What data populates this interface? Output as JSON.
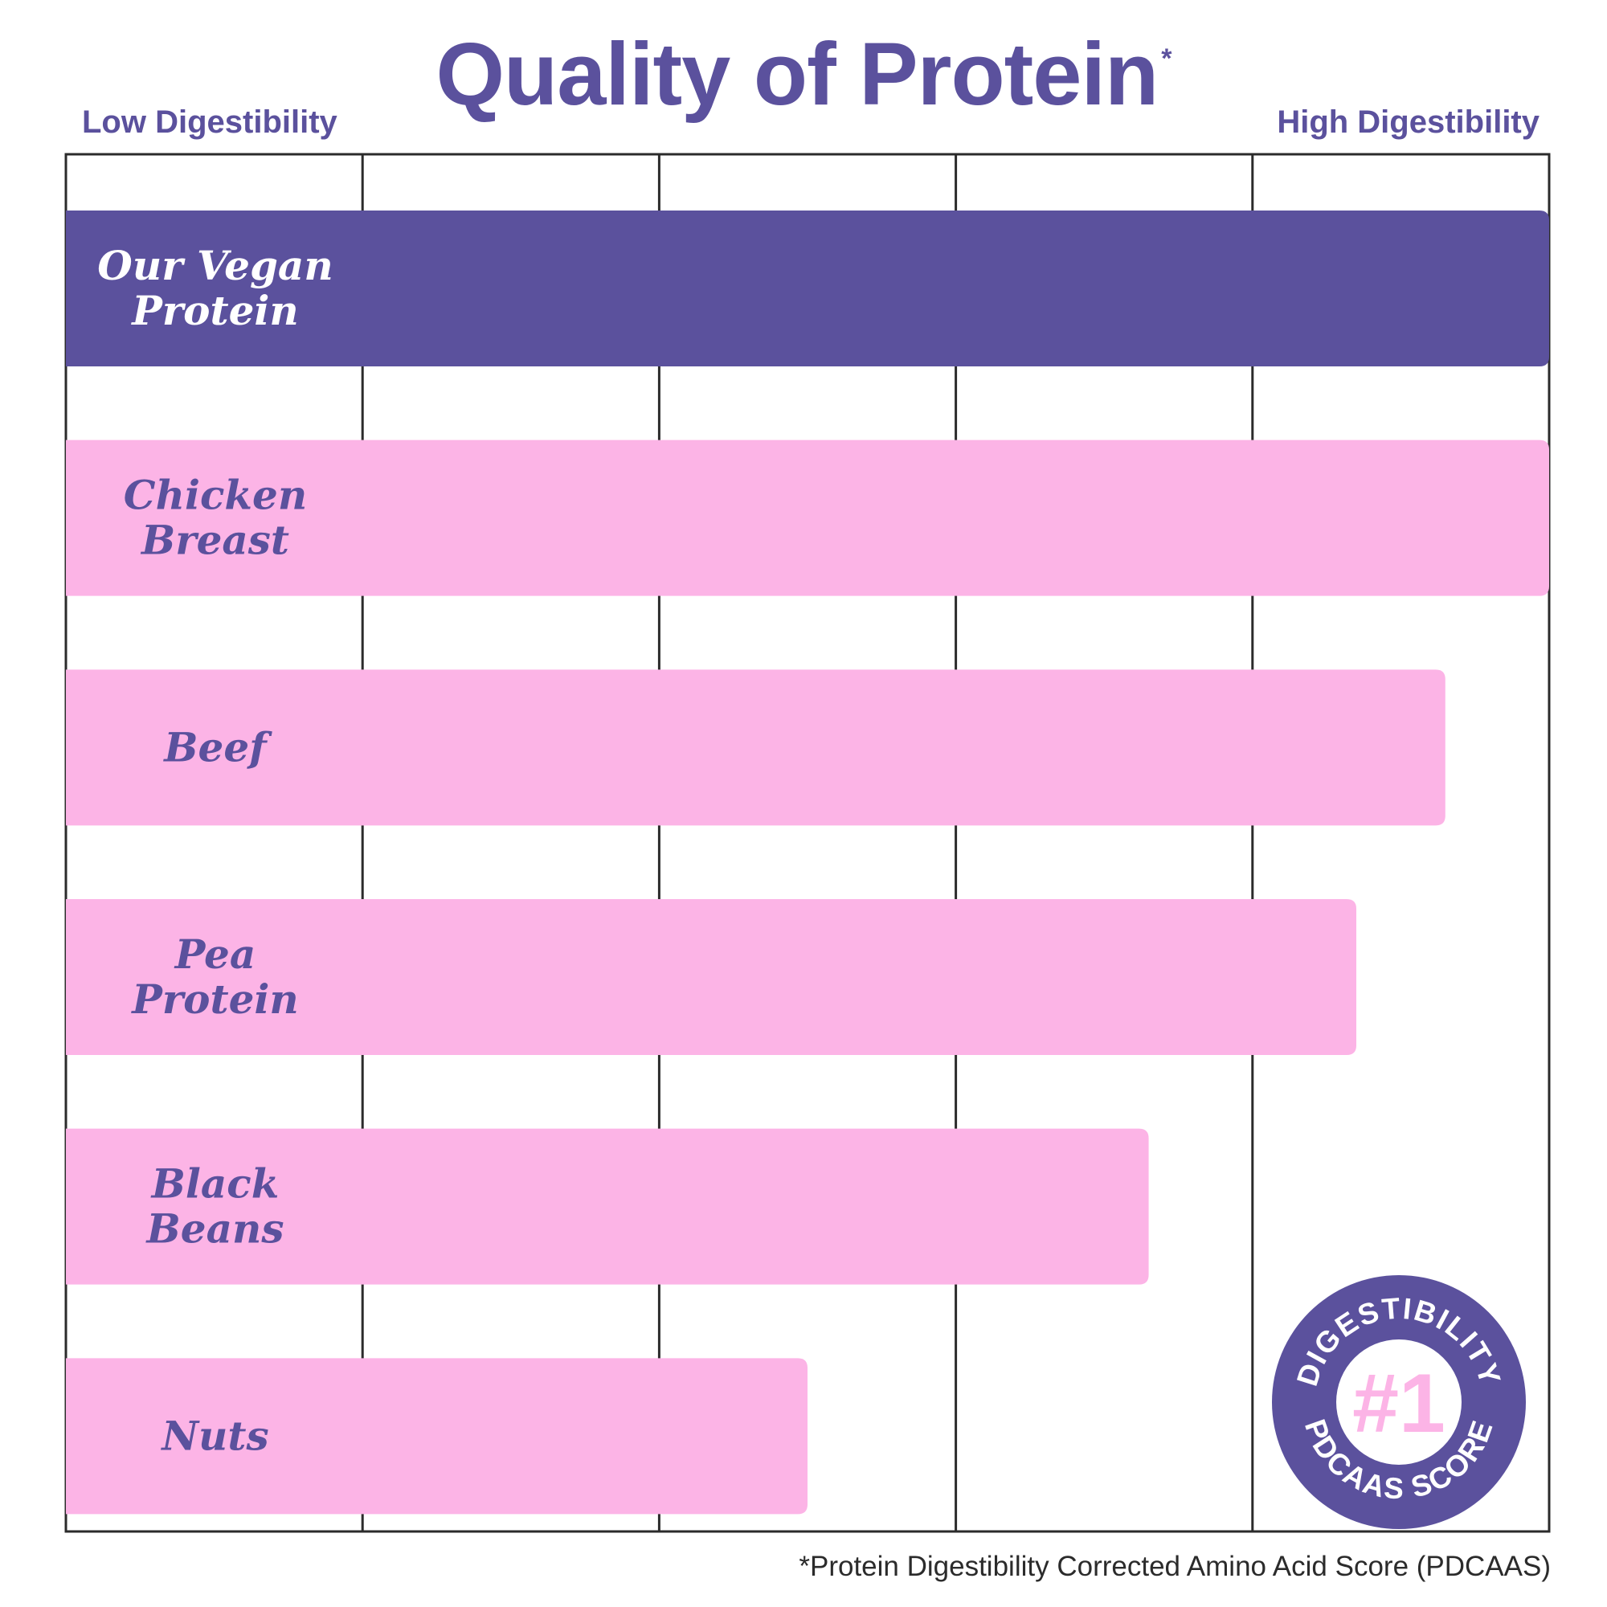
{
  "colors": {
    "brand_purple": "#5b519d",
    "pink": "#fcb4e6",
    "grid": "#2b2b2b",
    "white": "#ffffff"
  },
  "chart_data": {
    "type": "bar",
    "orientation": "horizontal",
    "title": "Quality of Protein",
    "title_mark": "*",
    "axis_low_label": "Low Digestibility",
    "axis_high_label": "High Digestibility",
    "xlim": [
      0,
      1
    ],
    "grid": true,
    "categories": [
      "Our Vegan Protein",
      "Chicken Breast",
      "Beef",
      "Pea Protein",
      "Black Beans",
      "Nuts"
    ],
    "label_lines": [
      [
        "Our Vegan",
        "Protein"
      ],
      [
        "Chicken",
        "Breast"
      ],
      [
        "Beef"
      ],
      [
        "Pea",
        "Protein"
      ],
      [
        "Black",
        "Beans"
      ],
      [
        "Nuts"
      ]
    ],
    "values": [
      1.0,
      1.0,
      0.93,
      0.87,
      0.73,
      0.5
    ],
    "highlight_index": 0
  },
  "footnote": "*Protein Digestibility Corrected Amino Acid Score (PDCAAS)",
  "badge": {
    "top_text": "DIGESTIBILITY",
    "center_text": "#1",
    "bottom_text": "PDCAAS SCORE"
  }
}
